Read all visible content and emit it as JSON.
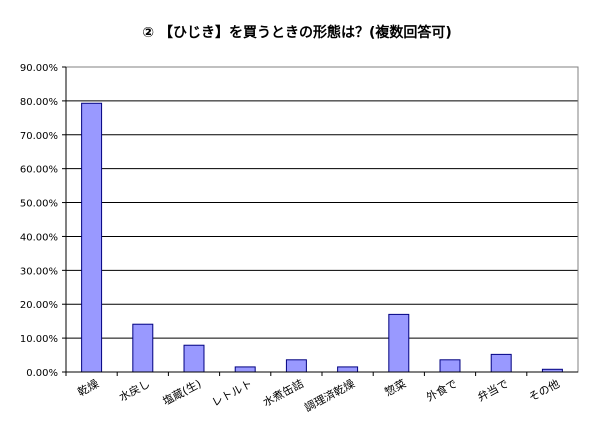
{
  "chart_data": {
    "type": "bar",
    "title": "② 【ひじき】を買うときの形態は？(複数回答可)",
    "categories": [
      "乾燥",
      "水戻し",
      "塩蔵(生)",
      "レトルト",
      "水煮缶詰",
      "調理済乾燥",
      "惣菜",
      "外食で",
      "弁当で",
      "その他"
    ],
    "values": [
      79.3,
      14.1,
      7.9,
      1.5,
      3.6,
      1.5,
      17.0,
      3.6,
      5.2,
      0.8
    ],
    "yticks": [
      "0.00%",
      "10.00%",
      "20.00%",
      "30.00%",
      "40.00%",
      "50.00%",
      "60.00%",
      "70.00%",
      "80.00%",
      "90.00%"
    ],
    "ylim": [
      0,
      90
    ],
    "ytick_step": 10,
    "grid": true,
    "legend": "none",
    "bar_color": "#9999ff",
    "bar_stroke": "#000080"
  }
}
